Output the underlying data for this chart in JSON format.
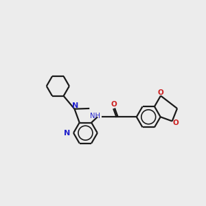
{
  "background_color": "#ececec",
  "bond_color": "#1a1a1a",
  "nitrogen_color": "#2020cc",
  "oxygen_color": "#cc2020",
  "nh_color": "#2020cc",
  "figsize": [
    3.0,
    3.0
  ],
  "dpi": 100,
  "xlim": [
    -3.2,
    4.8
  ],
  "ylim": [
    -2.8,
    3.2
  ]
}
